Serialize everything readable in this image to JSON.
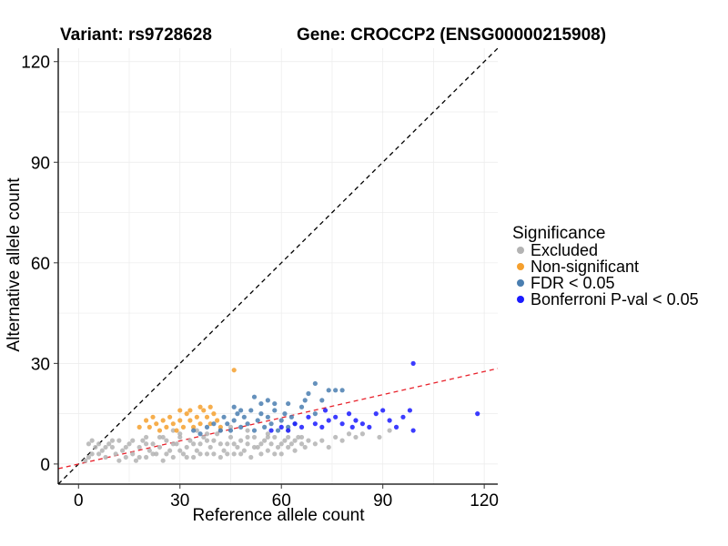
{
  "chart_data": {
    "type": "scatter",
    "title_variant": "Variant: rs9728628",
    "title_gene": "Gene: CROCCP2 (ENSG00000215908)",
    "xlabel": "Reference allele count",
    "ylabel": "Alternative allele count",
    "xlim": [
      -6,
      124
    ],
    "ylim": [
      -6,
      124
    ],
    "x_ticks": [
      0,
      30,
      60,
      90,
      120
    ],
    "y_ticks": [
      0,
      30,
      60,
      90,
      120
    ],
    "grid": true,
    "legend": {
      "title": "Significance",
      "position": "right",
      "entries": [
        {
          "label": "Excluded",
          "color": "#b3b3b3"
        },
        {
          "label": "Non-significant",
          "color": "#f5a02e"
        },
        {
          "label": "FDR < 0.05",
          "color": "#4a7eb0"
        },
        {
          "label": "Bonferroni P-val < 0.05",
          "color": "#1a1aff"
        }
      ]
    },
    "reference_lines": [
      {
        "style": "dashed",
        "color": "#000000",
        "from": [
          -6,
          -6
        ],
        "to": [
          124,
          124
        ]
      },
      {
        "style": "dashed",
        "color": "#e8202a",
        "from": [
          -6,
          -1.4
        ],
        "to": [
          124,
          28.5
        ]
      }
    ],
    "series": [
      {
        "name": "Excluded",
        "color": "#b3b3b3",
        "points": [
          [
            2,
            1
          ],
          [
            3,
            2
          ],
          [
            4,
            3
          ],
          [
            5,
            5
          ],
          [
            3,
            6
          ],
          [
            4,
            7
          ],
          [
            6,
            3
          ],
          [
            7,
            4
          ],
          [
            8,
            2
          ],
          [
            9,
            6
          ],
          [
            10,
            5
          ],
          [
            11,
            3
          ],
          [
            12,
            1
          ],
          [
            12,
            7
          ],
          [
            13,
            4
          ],
          [
            14,
            2
          ],
          [
            15,
            6
          ],
          [
            16,
            3
          ],
          [
            17,
            1
          ],
          [
            18,
            5
          ],
          [
            19,
            7
          ],
          [
            20,
            2
          ],
          [
            21,
            4
          ],
          [
            22,
            6
          ],
          [
            23,
            3
          ],
          [
            24,
            5
          ],
          [
            25,
            1
          ],
          [
            26,
            7
          ],
          [
            27,
            4
          ],
          [
            28,
            2
          ],
          [
            29,
            6
          ],
          [
            30,
            8
          ],
          [
            31,
            3
          ],
          [
            32,
            5
          ],
          [
            33,
            7
          ],
          [
            34,
            2
          ],
          [
            35,
            4
          ],
          [
            36,
            6
          ],
          [
            37,
            8
          ],
          [
            38,
            3
          ],
          [
            39,
            5
          ],
          [
            40,
            7
          ],
          [
            41,
            9
          ],
          [
            42,
            2
          ],
          [
            43,
            4
          ],
          [
            44,
            6
          ],
          [
            45,
            8
          ],
          [
            46,
            3
          ],
          [
            47,
            5
          ],
          [
            48,
            7
          ],
          [
            49,
            4
          ],
          [
            50,
            6
          ],
          [
            51,
            2
          ],
          [
            52,
            8
          ],
          [
            53,
            5
          ],
          [
            54,
            3
          ],
          [
            55,
            7
          ],
          [
            56,
            4
          ],
          [
            57,
            6
          ],
          [
            58,
            8
          ],
          [
            59,
            5
          ],
          [
            60,
            3
          ],
          [
            61,
            7
          ],
          [
            62,
            5
          ],
          [
            63,
            6
          ],
          [
            64,
            4
          ],
          [
            65,
            8
          ],
          [
            66,
            6
          ],
          [
            67,
            5
          ],
          [
            68,
            7
          ],
          [
            70,
            6
          ],
          [
            72,
            7
          ],
          [
            74,
            5
          ],
          [
            76,
            8
          ],
          [
            78,
            7
          ],
          [
            80,
            9
          ],
          [
            82,
            8
          ],
          [
            84,
            9
          ],
          [
            89,
            8
          ],
          [
            92,
            10
          ],
          [
            6,
            6
          ],
          [
            8,
            5
          ],
          [
            10,
            7
          ],
          [
            14,
            5
          ],
          [
            16,
            7
          ],
          [
            18,
            2
          ],
          [
            20,
            6
          ],
          [
            22,
            3
          ],
          [
            24,
            8
          ],
          [
            26,
            3
          ],
          [
            28,
            6
          ],
          [
            30,
            4
          ],
          [
            32,
            2
          ],
          [
            34,
            6
          ],
          [
            36,
            3
          ],
          [
            38,
            7
          ],
          [
            40,
            3
          ],
          [
            42,
            6
          ],
          [
            44,
            3
          ],
          [
            46,
            6
          ],
          [
            48,
            3
          ],
          [
            50,
            8
          ],
          [
            52,
            5
          ],
          [
            54,
            6
          ],
          [
            56,
            8
          ],
          [
            58,
            3
          ],
          [
            60,
            6
          ],
          [
            62,
            8
          ],
          [
            64,
            7
          ],
          [
            66,
            8
          ],
          [
            28,
            10
          ],
          [
            35,
            10
          ],
          [
            42,
            10
          ],
          [
            50,
            10
          ],
          [
            56,
            9
          ],
          [
            62,
            10
          ],
          [
            45,
            11
          ],
          [
            38,
            9
          ],
          [
            30,
            9
          ],
          [
            25,
            8
          ],
          [
            20,
            8
          ]
        ]
      },
      {
        "name": "Non-significant",
        "color": "#f5a02e",
        "points": [
          [
            18,
            11
          ],
          [
            20,
            13
          ],
          [
            21,
            11
          ],
          [
            22,
            14
          ],
          [
            23,
            12
          ],
          [
            24,
            10
          ],
          [
            25,
            13
          ],
          [
            26,
            11
          ],
          [
            27,
            14
          ],
          [
            28,
            12
          ],
          [
            29,
            10
          ],
          [
            30,
            13
          ],
          [
            31,
            11
          ],
          [
            32,
            15
          ],
          [
            33,
            13
          ],
          [
            34,
            11
          ],
          [
            35,
            14
          ],
          [
            36,
            12
          ],
          [
            37,
            16
          ],
          [
            38,
            14
          ],
          [
            39,
            12
          ],
          [
            40,
            15
          ],
          [
            41,
            13
          ],
          [
            42,
            11
          ],
          [
            36,
            17
          ],
          [
            39,
            17
          ],
          [
            30,
            16
          ],
          [
            33,
            16
          ],
          [
            46,
            28
          ]
        ]
      },
      {
        "name": "FDR < 0.05",
        "color": "#4a7eb0",
        "points": [
          [
            34,
            10
          ],
          [
            36,
            9
          ],
          [
            38,
            11
          ],
          [
            40,
            12
          ],
          [
            42,
            10
          ],
          [
            43,
            14
          ],
          [
            44,
            12
          ],
          [
            45,
            10
          ],
          [
            46,
            13
          ],
          [
            47,
            15
          ],
          [
            48,
            11
          ],
          [
            49,
            14
          ],
          [
            50,
            12
          ],
          [
            51,
            16
          ],
          [
            52,
            10
          ],
          [
            53,
            13
          ],
          [
            54,
            15
          ],
          [
            55,
            11
          ],
          [
            56,
            14
          ],
          [
            57,
            12
          ],
          [
            58,
            16
          ],
          [
            59,
            10
          ],
          [
            60,
            13
          ],
          [
            61,
            15
          ],
          [
            62,
            11
          ],
          [
            63,
            14
          ],
          [
            64,
            12
          ],
          [
            66,
            17
          ],
          [
            67,
            19
          ],
          [
            68,
            21
          ],
          [
            70,
            15
          ],
          [
            72,
            19
          ],
          [
            74,
            22
          ],
          [
            76,
            22
          ],
          [
            78,
            22
          ],
          [
            70,
            24
          ],
          [
            52,
            20
          ],
          [
            54,
            18
          ],
          [
            58,
            18
          ],
          [
            62,
            18
          ],
          [
            48,
            16
          ],
          [
            46,
            17
          ],
          [
            56,
            19
          ]
        ]
      },
      {
        "name": "Bonferroni P-val < 0.05",
        "color": "#1a1aff",
        "points": [
          [
            57,
            10
          ],
          [
            60,
            11
          ],
          [
            62,
            10
          ],
          [
            64,
            12
          ],
          [
            66,
            11
          ],
          [
            68,
            14
          ],
          [
            70,
            12
          ],
          [
            72,
            11
          ],
          [
            74,
            13
          ],
          [
            76,
            14
          ],
          [
            78,
            12
          ],
          [
            80,
            15
          ],
          [
            82,
            13
          ],
          [
            84,
            12
          ],
          [
            86,
            11
          ],
          [
            88,
            15
          ],
          [
            90,
            16
          ],
          [
            92,
            13
          ],
          [
            94,
            11
          ],
          [
            96,
            14
          ],
          [
            98,
            16
          ],
          [
            99,
            10
          ],
          [
            99,
            30
          ],
          [
            118,
            15
          ],
          [
            73,
            16
          ],
          [
            81,
            11
          ]
        ]
      }
    ]
  }
}
